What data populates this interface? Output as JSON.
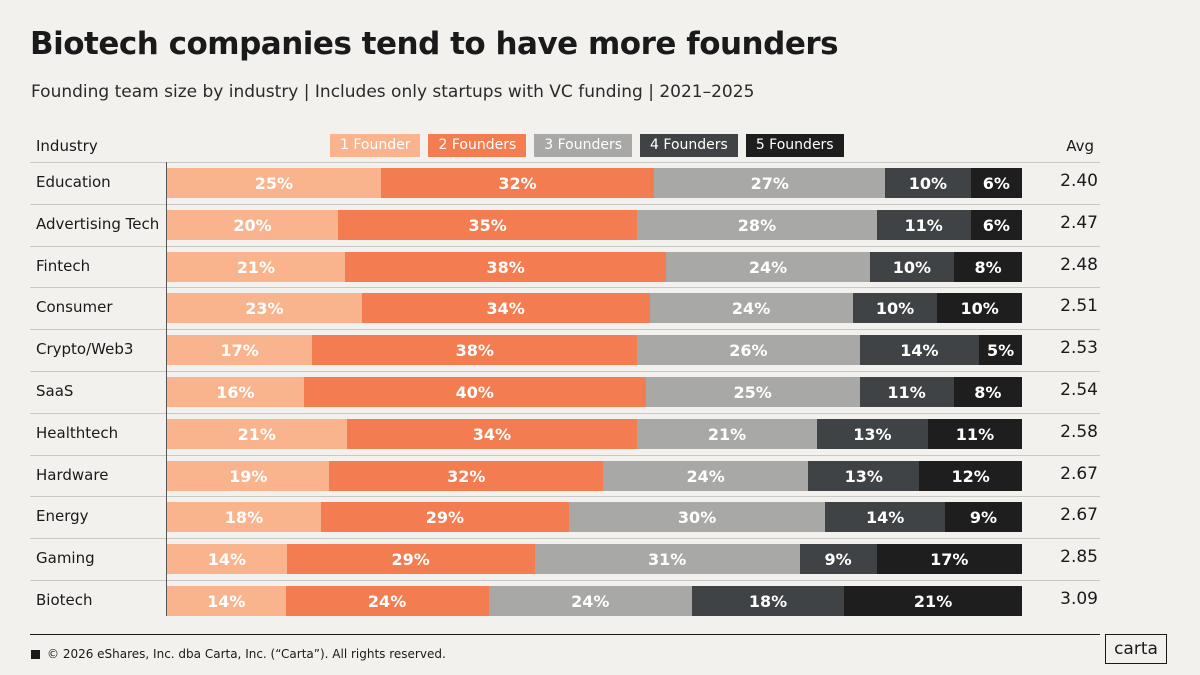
{
  "chart_data": {
    "type": "bar",
    "orientation": "horizontal",
    "stacked": true,
    "title": "Biotech companies tend to have more founders",
    "subtitle": "Founding team size by industry | Includes only startups with VC funding | 2021–2025",
    "category_header": "Industry",
    "avg_header": "Avg",
    "categories": [
      "Education",
      "Advertising Tech",
      "Fintech",
      "Consumer",
      "Crypto/Web3",
      "SaaS",
      "Healthtech",
      "Hardware",
      "Energy",
      "Gaming",
      "Biotech"
    ],
    "series": [
      {
        "name": "1 Founder",
        "color": "#f9b48e",
        "values": [
          25,
          20,
          21,
          23,
          17,
          16,
          21,
          19,
          18,
          14,
          14
        ]
      },
      {
        "name": "2 Founders",
        "color": "#f47c51",
        "values": [
          32,
          35,
          38,
          34,
          38,
          40,
          34,
          32,
          29,
          29,
          24
        ]
      },
      {
        "name": "3 Founders",
        "color": "#a8a8a6",
        "values": [
          27,
          28,
          24,
          24,
          26,
          25,
          21,
          24,
          30,
          31,
          24
        ]
      },
      {
        "name": "4 Founders",
        "color": "#3f4346",
        "values": [
          10,
          11,
          10,
          10,
          14,
          11,
          13,
          13,
          14,
          9,
          18
        ]
      },
      {
        "name": "5 Founders",
        "color": "#1e1e1e",
        "values": [
          6,
          6,
          8,
          10,
          5,
          8,
          11,
          12,
          9,
          17,
          21
        ]
      }
    ],
    "avg": [
      "2.40",
      "2.47",
      "2.48",
      "2.51",
      "2.53",
      "2.54",
      "2.58",
      "2.67",
      "2.67",
      "2.85",
      "3.09"
    ],
    "value_suffix": "%"
  },
  "footer": {
    "copyright": "© 2026 eShares, Inc. dba Carta, Inc. (“Carta”). All rights reserved.",
    "logo": "carta"
  }
}
